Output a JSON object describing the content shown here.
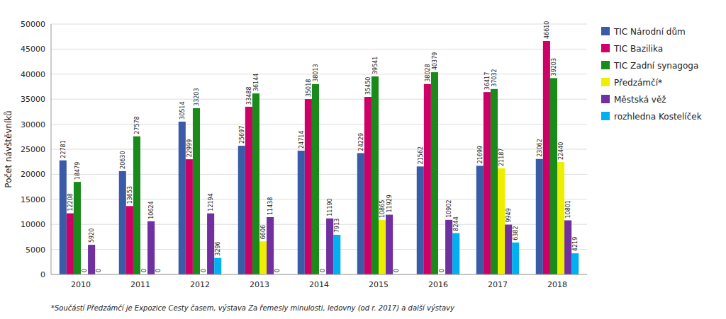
{
  "chart_data": {
    "type": "bar",
    "ylabel": "Počet návštěvníků",
    "categories": [
      "2010",
      "2011",
      "2012",
      "2013",
      "2014",
      "2015",
      "2016",
      "2017",
      "2018"
    ],
    "series": [
      {
        "name": "TIC Národní dům",
        "color": "#3a5ca8",
        "values": [
          22781,
          20630,
          30514,
          25697,
          24714,
          24229,
          21562,
          21699,
          23062
        ]
      },
      {
        "name": "TIC Bazilika",
        "color": "#cc0066",
        "values": [
          12208,
          13653,
          22999,
          33488,
          35018,
          35450,
          38028,
          36417,
          46610
        ]
      },
      {
        "name": "TIC Zadní synagoga",
        "color": "#1a8a1a",
        "values": [
          18479,
          27578,
          33203,
          36144,
          38013,
          39541,
          40379,
          37032,
          39203
        ]
      },
      {
        "name": "Předzámčí*",
        "color": "#eeee00",
        "values": [
          0,
          0,
          0,
          6606,
          0,
          10865,
          0,
          21187,
          22440
        ]
      },
      {
        "name": "Městská věž",
        "color": "#7030a0",
        "values": [
          5920,
          10624,
          12194,
          11438,
          11190,
          11929,
          10902,
          9949,
          10801
        ]
      },
      {
        "name": "rozhledna Kostelíček",
        "color": "#00b0f0",
        "values": [
          0,
          0,
          3296,
          0,
          7913,
          0,
          8244,
          6382,
          4219
        ]
      }
    ],
    "ylim": [
      0,
      50000
    ],
    "yticks": [
      0,
      5000,
      10000,
      15000,
      20000,
      25000,
      30000,
      35000,
      40000,
      45000,
      50000
    ],
    "grid": true,
    "legend": "right",
    "data_labels": true,
    "annotations": [
      "*Součástí Předzámčí je Expozice Cesty časem, výstava Za řemesly minulosti, ledovny (od r. 2017) a další výstavy"
    ]
  }
}
